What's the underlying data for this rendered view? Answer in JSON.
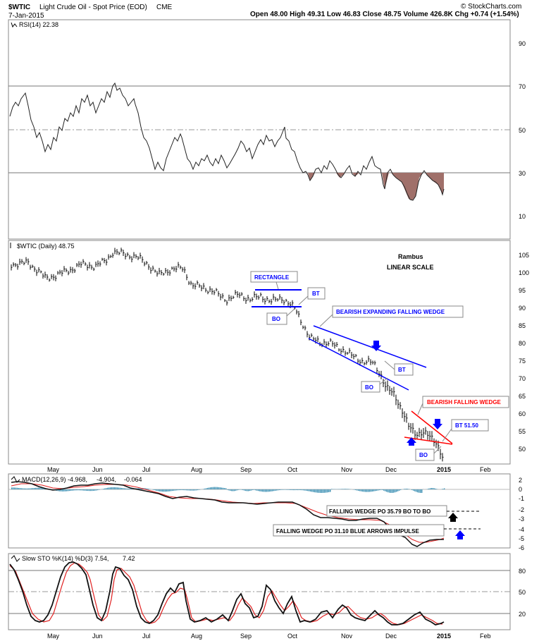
{
  "header": {
    "symbol": "$WTIC",
    "name": "Light Crude Oil - Spot Price (EOD)",
    "exchange": "CME",
    "date": "7-Jan-2015",
    "quote": "Open 48.00  High 49.31  Low 46.83  Close 48.75  Volume 426.8K  Chg +0.74 (+1.54%)",
    "credit": "© StockCharts.com"
  },
  "months": [
    "May",
    "Jun",
    "Jul",
    "Aug",
    "Sep",
    "Oct",
    "Nov",
    "Dec",
    "2015",
    "Feb"
  ],
  "rsi": {
    "label": "RSI(14) 22.38",
    "ticks": [
      "90",
      "70",
      "50",
      "30",
      "10"
    ]
  },
  "price": {
    "label": "$WTIC (Daily) 48.75",
    "ticks": [
      "105",
      "100",
      "95",
      "90",
      "85",
      "80",
      "75",
      "70",
      "65",
      "60",
      "55",
      "50"
    ],
    "scale_note_1": "Rambus",
    "scale_note_2": "LINEAR SCALE"
  },
  "annotations": {
    "rectangle": "RECTANGLE",
    "bt1": "BT",
    "bo1": "BO",
    "expanding": "BEARISH EXPANDING FALLING WEDGE",
    "bt2": "BT",
    "bo2": "BO",
    "falling": "BEARISH FALLING WEDGE",
    "bt3": "BT 51.50",
    "bo3": "BO"
  },
  "macd": {
    "label_main": "MACD(12,26,9) -4.968,",
    "label_sig": "-4.904,",
    "label_hist": "-0.064",
    "ticks": [
      "2",
      "0",
      "-1",
      "-2",
      "-3",
      "-4",
      "-5",
      "-6"
    ],
    "note1": "FALLING WEDGE PO 35.79 BO TO BO",
    "note2": "FALLING WEDGE PO 31.10  BLUE ARROWS IMPULSE"
  },
  "sto": {
    "label_main": "Slow STO %K(14) %D(3) 7.54,",
    "label_sig": "7.42",
    "ticks": [
      "80",
      "50",
      "20"
    ]
  },
  "colors": {
    "rsi_fill": "#a0706a",
    "wedge_blue": "#0000ff",
    "wedge_red": "#ff0000",
    "macd_hist": "#3b8fb3",
    "signal_red": "#e02020"
  },
  "chart_data": [
    {
      "type": "line",
      "title": "RSI(14) 22.38",
      "ylim": [
        0,
        100
      ],
      "x": [
        "May",
        "Jun",
        "Jul",
        "Aug",
        "Sep",
        "Oct",
        "Nov",
        "Dec",
        "2015"
      ],
      "series": [
        {
          "name": "RSI(14)",
          "values": [
            62,
            60,
            62,
            32,
            35,
            38,
            34,
            28,
            22
          ]
        }
      ],
      "reference_lines": [
        70,
        50,
        30
      ]
    },
    {
      "type": "line",
      "title": "$WTIC (Daily) 48.75",
      "ylim": [
        46,
        107
      ],
      "x": [
        "May",
        "Jun",
        "Jul",
        "Aug",
        "Sep",
        "Oct",
        "Nov",
        "Dec",
        "2015"
      ],
      "series": [
        {
          "name": "$WTIC",
          "values": [
            102,
            104,
            106,
            98,
            94,
            91,
            78,
            66,
            48.75
          ]
        }
      ]
    },
    {
      "type": "line",
      "title": "MACD(12,26,9)",
      "ylim": [
        -6.5,
        2.2
      ],
      "x": [
        "May",
        "Jun",
        "Jul",
        "Aug",
        "Sep",
        "Oct",
        "Nov",
        "Dec",
        "2015"
      ],
      "series": [
        {
          "name": "MACD",
          "values": [
            0.5,
            1,
            0.8,
            -1,
            -0.5,
            -1.5,
            -2.2,
            -3,
            -4.968
          ]
        },
        {
          "name": "Signal",
          "values": [
            0.3,
            0.8,
            0.9,
            -0.8,
            -0.6,
            -1.2,
            -2.1,
            -2.7,
            -4.904
          ]
        }
      ]
    },
    {
      "type": "line",
      "title": "Slow STO %K(14) %D(3)",
      "ylim": [
        0,
        100
      ],
      "x": [
        "May",
        "Jun",
        "Jul",
        "Aug",
        "Sep",
        "Oct",
        "Nov",
        "Dec",
        "2015"
      ],
      "series": [
        {
          "name": "%K",
          "values": [
            85,
            20,
            90,
            10,
            65,
            15,
            55,
            10,
            7.54
          ]
        },
        {
          "name": "%D",
          "values": [
            82,
            25,
            85,
            12,
            60,
            18,
            50,
            12,
            7.42
          ]
        }
      ]
    }
  ]
}
